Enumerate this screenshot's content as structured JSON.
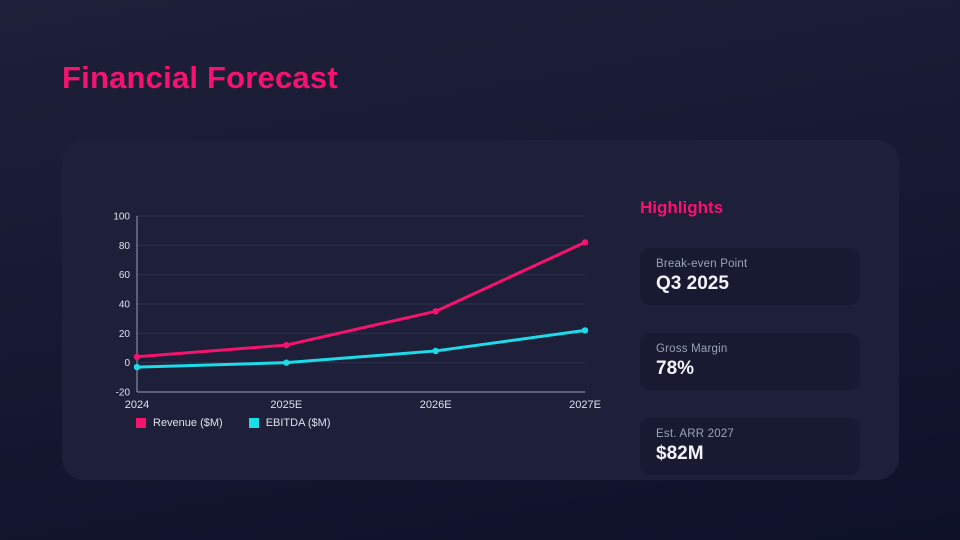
{
  "slide": {
    "title": "Financial Forecast"
  },
  "chart_data": {
    "type": "line",
    "categories": [
      "2024",
      "2025E",
      "2026E",
      "2027E"
    ],
    "series": [
      {
        "name": "Revenue ($M)",
        "color": "#f5136f",
        "values": [
          4,
          12,
          35,
          82
        ]
      },
      {
        "name": "EBITDA ($M)",
        "color": "#1cdcea",
        "values": [
          -3,
          0,
          8,
          22
        ]
      }
    ],
    "ylim": [
      -20,
      100
    ],
    "yticks": [
      -20,
      0,
      20,
      40,
      60,
      80,
      100
    ],
    "grid": true,
    "legend_position": "bottom-left",
    "title": "",
    "xlabel": "",
    "ylabel": ""
  },
  "highlights": {
    "title": "Highlights",
    "cards": [
      {
        "label": "Break-even Point",
        "value": "Q3 2025"
      },
      {
        "label": "Gross Margin",
        "value": "78%"
      },
      {
        "label": "Est. ARR 2027",
        "value": "$82M"
      }
    ]
  },
  "colors": {
    "accent_pink": "#f5136f",
    "accent_cyan": "#1cdcea",
    "background_top": "#1e2039",
    "background_bottom": "#0e1128",
    "panel": "#1d2038",
    "card": "#171a30",
    "gridline": "#2b2f4a",
    "axis": "#9aa0b4",
    "tick_text": "#dde2ee",
    "muted_text": "#9ca3b8"
  }
}
